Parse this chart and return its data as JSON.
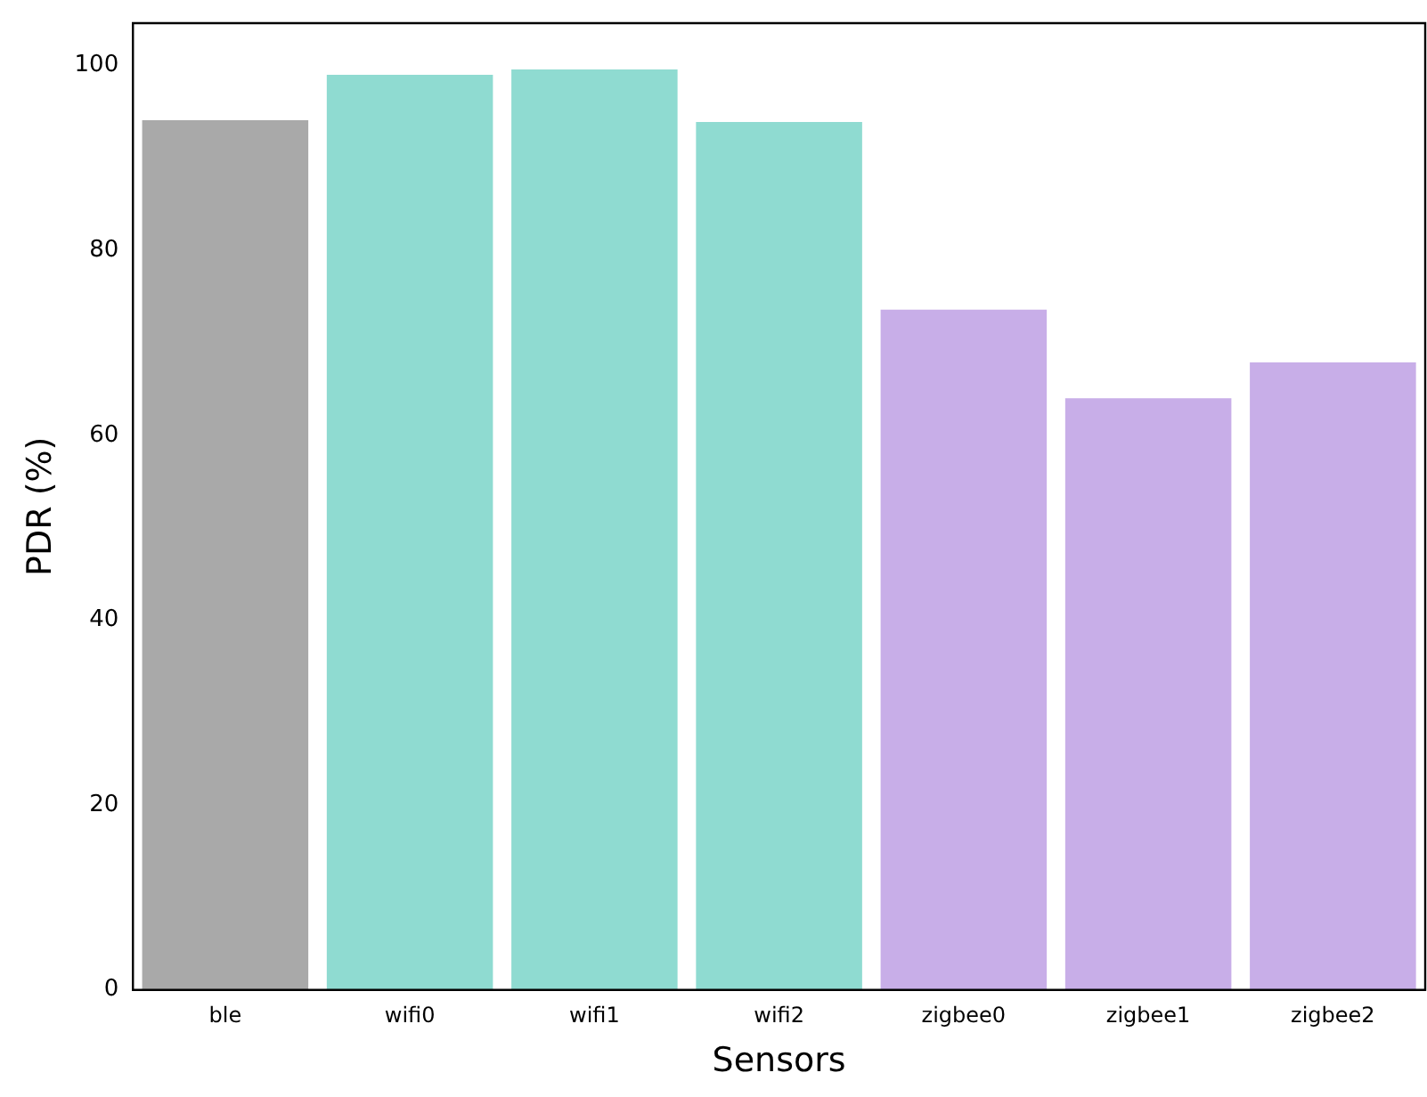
{
  "chart_data": {
    "type": "bar",
    "xlabel": "Sensors",
    "ylabel": "PDR (%)",
    "categories": [
      "ble",
      "wifi0",
      "wifi1",
      "wifi2",
      "zigbee0",
      "zigbee1",
      "zigbee2"
    ],
    "values": [
      94.1,
      99.0,
      99.6,
      93.9,
      73.6,
      64.0,
      67.9
    ],
    "colors": [
      "#a9a9a9",
      "#8fdbd1",
      "#8fdbd1",
      "#8fdbd1",
      "#c8aee8",
      "#c8aee8",
      "#c8aee8"
    ],
    "ylim": [
      0,
      104.6
    ],
    "yticks": [
      0,
      20,
      40,
      60,
      80,
      100
    ],
    "grid": false,
    "legend": false
  }
}
